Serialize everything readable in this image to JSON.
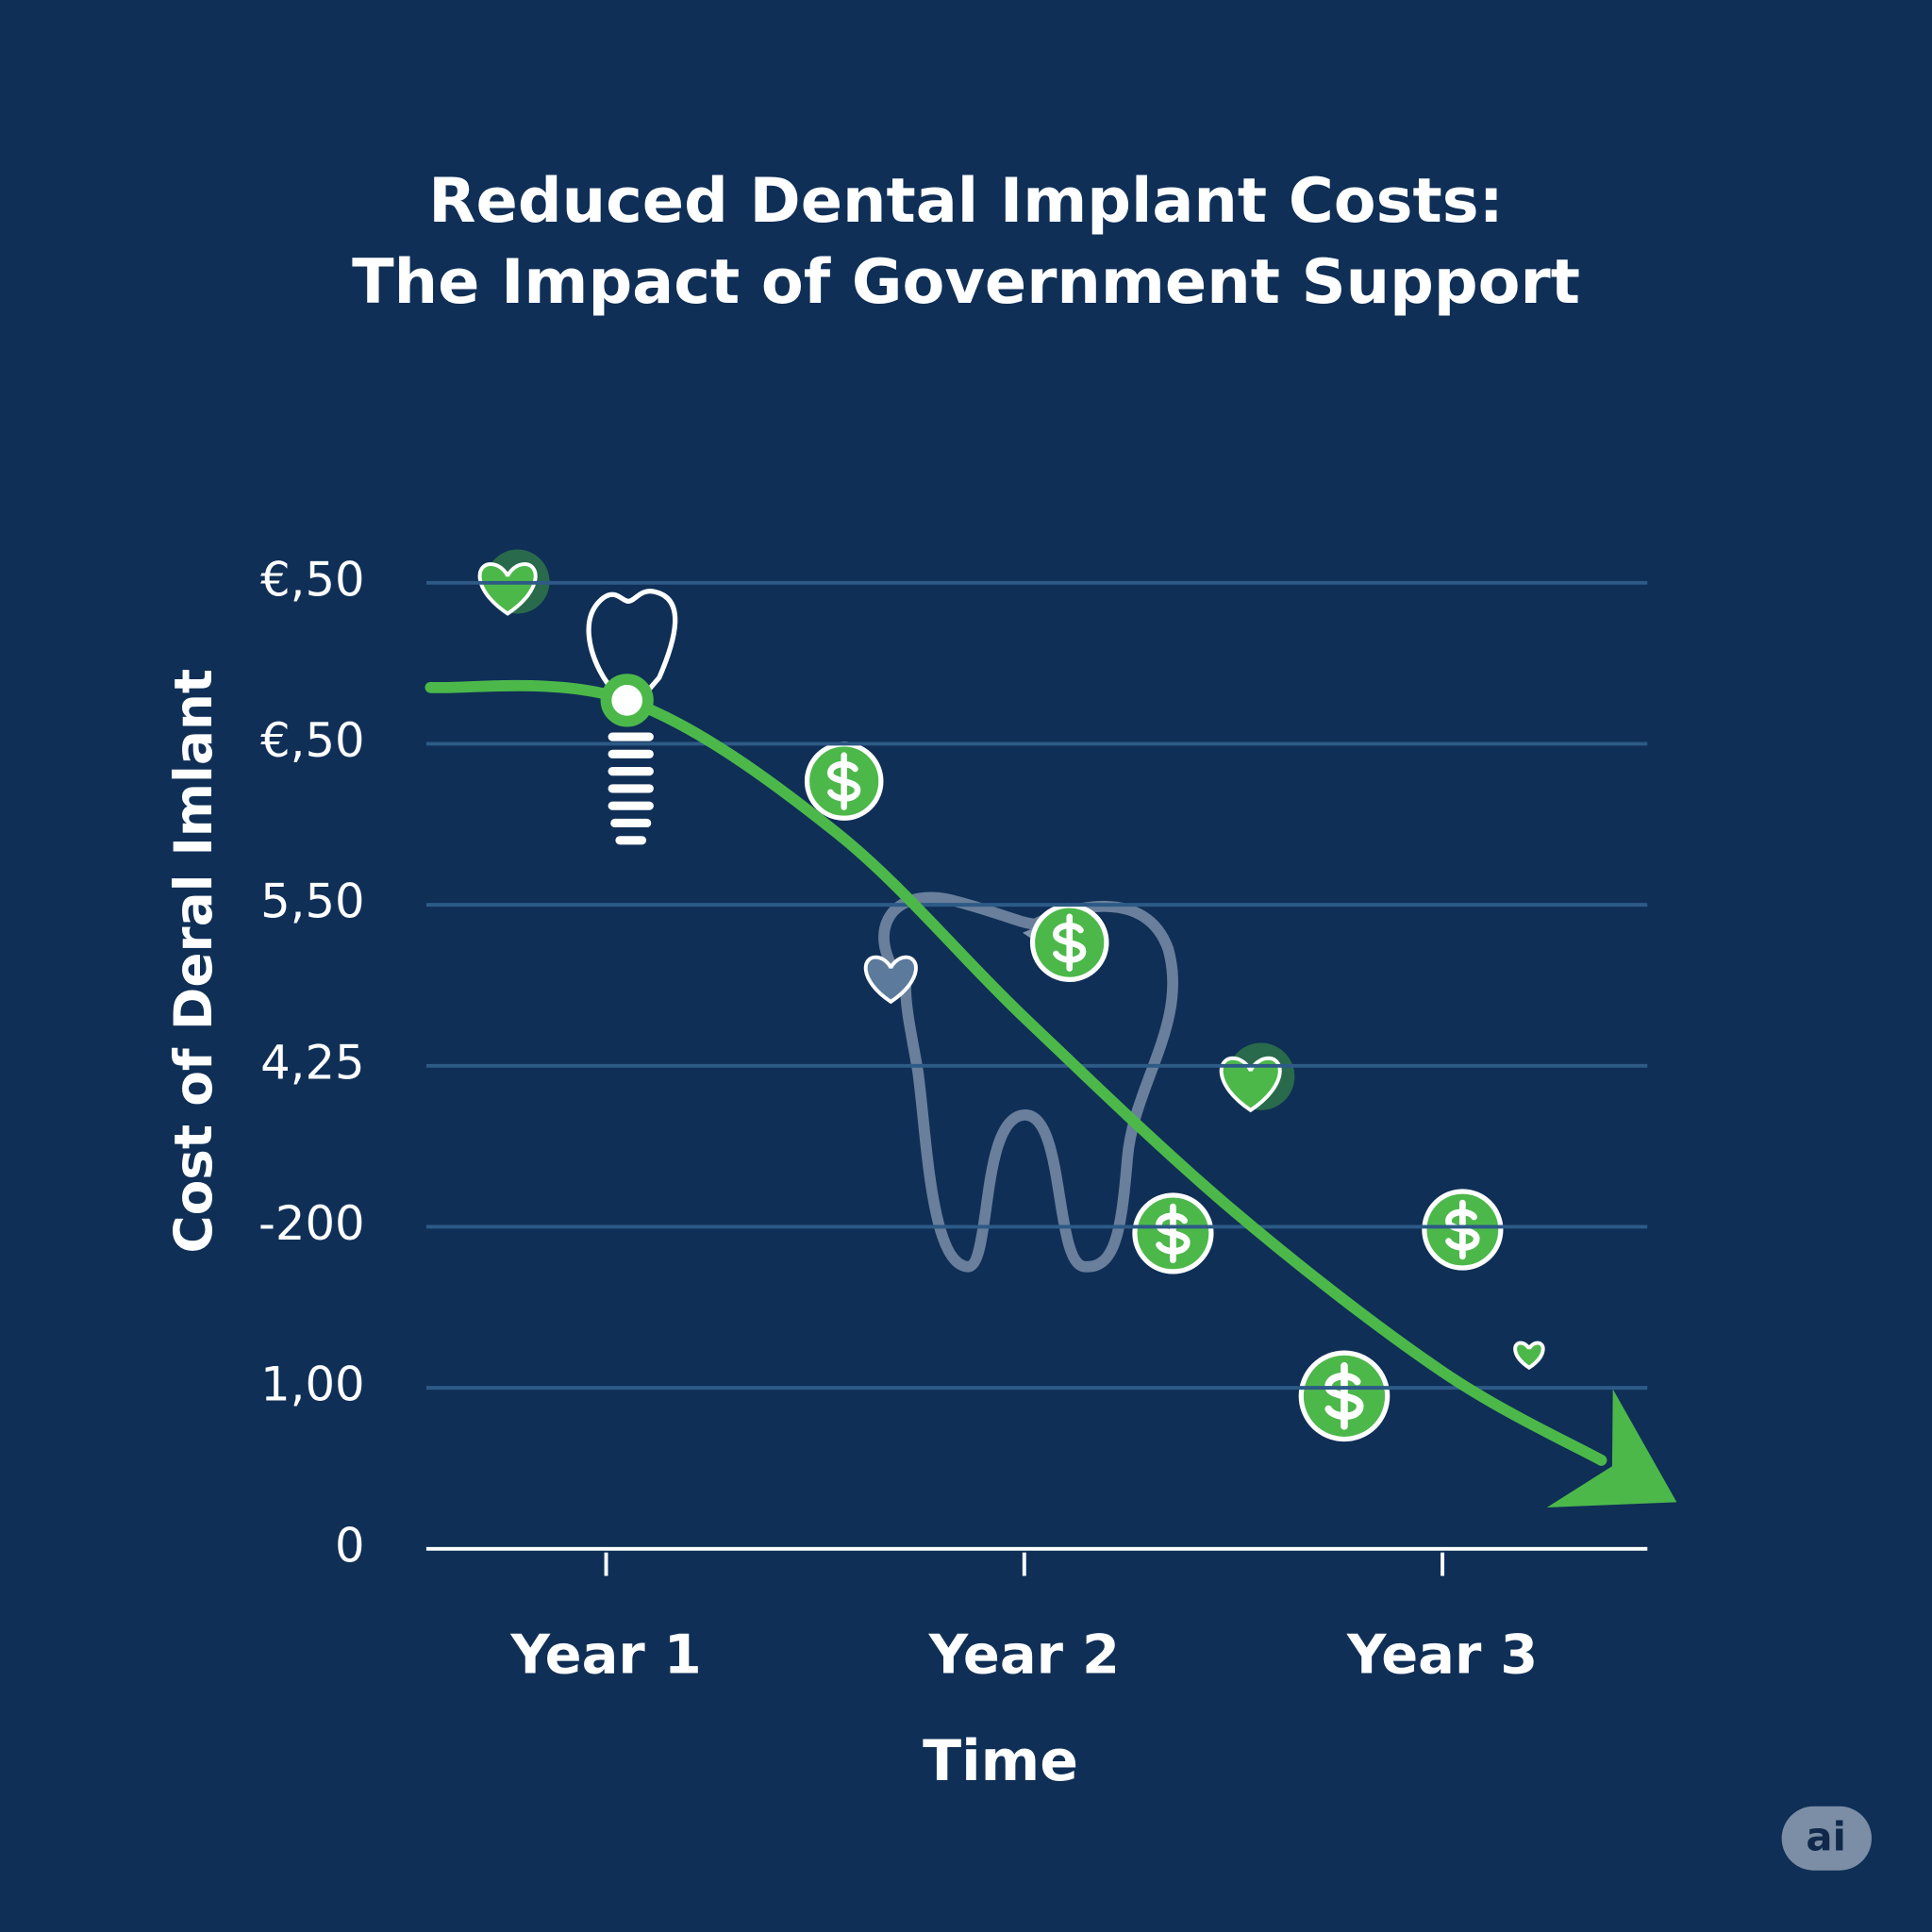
{
  "chart_data": {
    "type": "line",
    "title": [
      "Reduced Dental Implant Costs:",
      "The Impact of Government Support"
    ],
    "y_label": "Cost of Deral Imlant",
    "x_label": "Time",
    "xlim": [
      0.57,
      3.49
    ],
    "xticks": [
      {
        "value": 1,
        "label": "Year 1"
      },
      {
        "value": 2,
        "label": "Year 2"
      },
      {
        "value": 3,
        "label": "Year 3"
      }
    ],
    "ylim": [
      0,
      6
    ],
    "yticks": [
      0,
      {
        "value": 1,
        "label": "1,00"
      },
      {
        "value": 2,
        "label": "-200"
      },
      {
        "value": 3,
        "label": "4,25"
      },
      {
        "value": 4,
        "label": "5,50"
      },
      {
        "value": 5,
        "label": "€,50"
      },
      {
        "value": 6,
        "label": "€,50"
      }
    ],
    "grid": true,
    "series": [
      {
        "color": "#4cb84a",
        "x": [
          0.58,
          1.05,
          1.55,
          2,
          2.5,
          3,
          3.38
        ],
        "values": [
          5.35,
          5.27,
          4.45,
          3.3,
          2.1,
          1.1,
          0.55
        ]
      }
    ],
    "badge": "ai"
  }
}
